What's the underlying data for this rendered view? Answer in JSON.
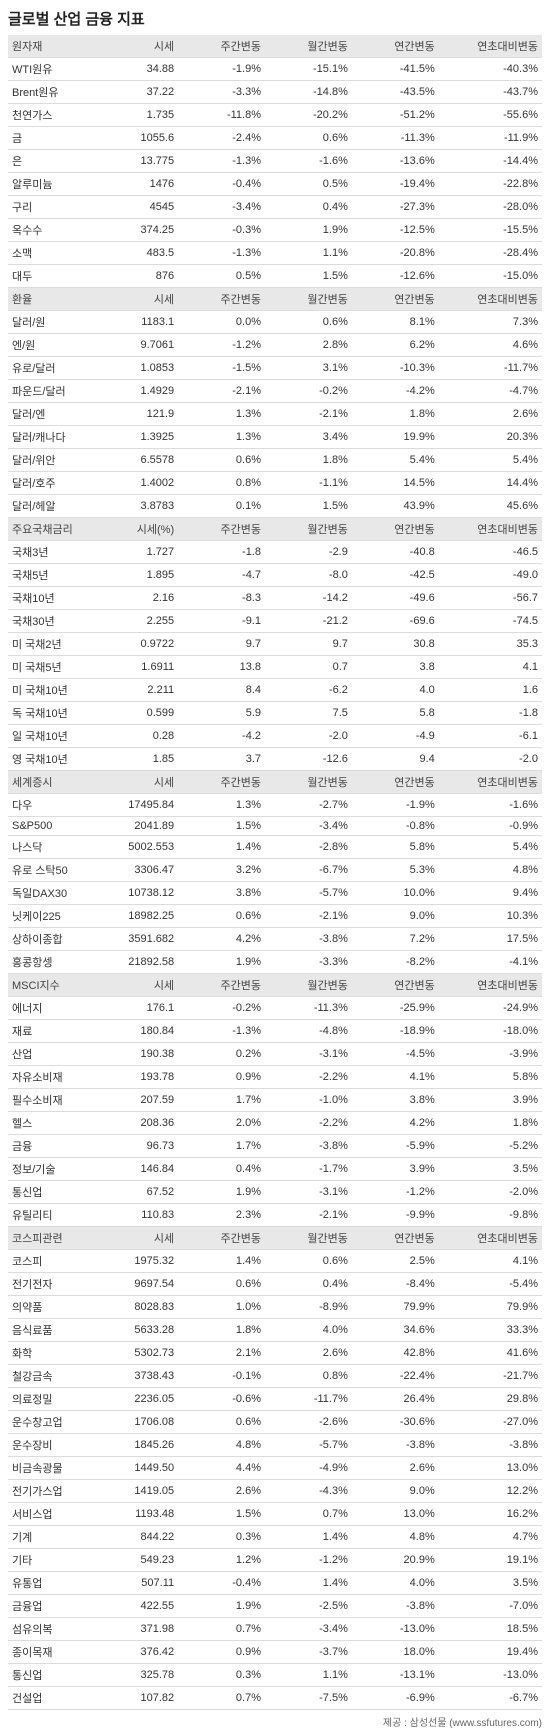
{
  "title": "글로벌 산업 금융 지표",
  "footer": "제공 : 삼성선물 (www.ssfutures.com)",
  "header_cols": [
    "주간변동",
    "월간변동",
    "연간변동",
    "연초대비변동"
  ],
  "sections": [
    {
      "name": "원자재",
      "col0": "시세",
      "rows": [
        [
          "WTI원유",
          "34.88",
          "-1.9%",
          "-15.1%",
          "-41.5%",
          "-40.3%"
        ],
        [
          "Brent원유",
          "37.22",
          "-3.3%",
          "-14.8%",
          "-43.5%",
          "-43.7%"
        ],
        [
          "천연가스",
          "1.735",
          "-11.8%",
          "-20.2%",
          "-51.2%",
          "-55.6%"
        ],
        [
          "금",
          "1055.6",
          "-2.4%",
          "0.6%",
          "-11.3%",
          "-11.9%"
        ],
        [
          "은",
          "13.775",
          "-1.3%",
          "-1.6%",
          "-13.6%",
          "-14.4%"
        ],
        [
          "알루미늄",
          "1476",
          "-0.4%",
          "0.5%",
          "-19.4%",
          "-22.8%"
        ],
        [
          "구리",
          "4545",
          "-3.4%",
          "0.4%",
          "-27.3%",
          "-28.0%"
        ],
        [
          "옥수수",
          "374.25",
          "-0.3%",
          "1.9%",
          "-12.5%",
          "-15.5%"
        ],
        [
          "소맥",
          "483.5",
          "-1.3%",
          "1.1%",
          "-20.8%",
          "-28.4%"
        ],
        [
          "대두",
          "876",
          "0.5%",
          "1.5%",
          "-12.6%",
          "-15.0%"
        ]
      ]
    },
    {
      "name": "환율",
      "col0": "시세",
      "rows": [
        [
          "달러/원",
          "1183.1",
          "0.0%",
          "0.6%",
          "8.1%",
          "7.3%"
        ],
        [
          "엔/원",
          "9.7061",
          "-1.2%",
          "2.8%",
          "6.2%",
          "4.6%"
        ],
        [
          "유로/달러",
          "1.0853",
          "-1.5%",
          "3.1%",
          "-10.3%",
          "-11.7%"
        ],
        [
          "파운드/달러",
          "1.4929",
          "-2.1%",
          "-0.2%",
          "-4.2%",
          "-4.7%"
        ],
        [
          "달러/엔",
          "121.9",
          "1.3%",
          "-2.1%",
          "1.8%",
          "2.6%"
        ],
        [
          "달러/캐나다",
          "1.3925",
          "1.3%",
          "3.4%",
          "19.9%",
          "20.3%"
        ],
        [
          "달러/위안",
          "6.5578",
          "0.6%",
          "1.8%",
          "5.4%",
          "5.4%"
        ],
        [
          "달러/호주",
          "1.4002",
          "0.8%",
          "-1.1%",
          "14.5%",
          "14.4%"
        ],
        [
          "달러/헤알",
          "3.8783",
          "0.1%",
          "1.5%",
          "43.9%",
          "45.6%"
        ]
      ]
    },
    {
      "name": "주요국채금리",
      "col0": "시세(%)",
      "rows": [
        [
          "국채3년",
          "1.727",
          "-1.8",
          "-2.9",
          "-40.8",
          "-46.5"
        ],
        [
          "국채5년",
          "1.895",
          "-4.7",
          "-8.0",
          "-42.5",
          "-49.0"
        ],
        [
          "국채10년",
          "2.16",
          "-8.3",
          "-14.2",
          "-49.6",
          "-56.7"
        ],
        [
          "국채30년",
          "2.255",
          "-9.1",
          "-21.2",
          "-69.6",
          "-74.5"
        ],
        [
          "미 국채2년",
          "0.9722",
          "9.7",
          "9.7",
          "30.8",
          "35.3"
        ],
        [
          "미 국채5년",
          "1.6911",
          "13.8",
          "0.7",
          "3.8",
          "4.1"
        ],
        [
          "미 국채10년",
          "2.211",
          "8.4",
          "-6.2",
          "4.0",
          "1.6"
        ],
        [
          "독 국채10년",
          "0.599",
          "5.9",
          "7.5",
          "5.8",
          "-1.8"
        ],
        [
          "일 국채10년",
          "0.28",
          "-4.2",
          "-2.0",
          "-4.9",
          "-6.1"
        ],
        [
          "영 국채10년",
          "1.85",
          "3.7",
          "-12.6",
          "9.4",
          "-2.0"
        ]
      ]
    },
    {
      "name": "세계증시",
      "col0": "시세",
      "rows": [
        [
          "다우",
          "17495.84",
          "1.3%",
          "-2.7%",
          "-1.9%",
          "-1.6%"
        ],
        [
          "S&P500",
          "2041.89",
          "1.5%",
          "-3.4%",
          "-0.8%",
          "-0.9%"
        ],
        [
          "나스닥",
          "5002.553",
          "1.4%",
          "-2.8%",
          "5.8%",
          "5.4%"
        ],
        [
          "유로 스탁50",
          "3306.47",
          "3.2%",
          "-6.7%",
          "5.3%",
          "4.8%"
        ],
        [
          "독일DAX30",
          "10738.12",
          "3.8%",
          "-5.7%",
          "10.0%",
          "9.4%"
        ],
        [
          "닛케이225",
          "18982.25",
          "0.6%",
          "-2.1%",
          "9.0%",
          "10.3%"
        ],
        [
          "상하이종합",
          "3591.682",
          "4.2%",
          "-3.8%",
          "7.2%",
          "17.5%"
        ],
        [
          "홍콩항셍",
          "21892.58",
          "1.9%",
          "-3.3%",
          "-8.2%",
          "-4.1%"
        ]
      ]
    },
    {
      "name": "MSCI지수",
      "col0": "시세",
      "rows": [
        [
          "에너지",
          "176.1",
          "-0.2%",
          "-11.3%",
          "-25.9%",
          "-24.9%"
        ],
        [
          "재료",
          "180.84",
          "-1.3%",
          "-4.8%",
          "-18.9%",
          "-18.0%"
        ],
        [
          "산업",
          "190.38",
          "0.2%",
          "-3.1%",
          "-4.5%",
          "-3.9%"
        ],
        [
          "자유소비재",
          "193.78",
          "0.9%",
          "-2.2%",
          "4.1%",
          "5.8%"
        ],
        [
          "필수소비재",
          "207.59",
          "1.7%",
          "-1.0%",
          "3.8%",
          "3.9%"
        ],
        [
          "헬스",
          "208.36",
          "2.0%",
          "-2.2%",
          "4.2%",
          "1.8%"
        ],
        [
          "금융",
          "96.73",
          "1.7%",
          "-3.8%",
          "-5.9%",
          "-5.2%"
        ],
        [
          "정보/기술",
          "146.84",
          "0.4%",
          "-1.7%",
          "3.9%",
          "3.5%"
        ],
        [
          "통신업",
          "67.52",
          "1.9%",
          "-3.1%",
          "-1.2%",
          "-2.0%"
        ],
        [
          "유틸리티",
          "110.83",
          "2.3%",
          "-2.1%",
          "-9.9%",
          "-9.8%"
        ]
      ]
    },
    {
      "name": "코스피관련",
      "col0": "시세",
      "rows": [
        [
          "코스피",
          "1975.32",
          "1.4%",
          "0.6%",
          "2.5%",
          "4.1%"
        ],
        [
          "전기전자",
          "9697.54",
          "0.6%",
          "0.4%",
          "-8.4%",
          "-5.4%"
        ],
        [
          "의약품",
          "8028.83",
          "1.0%",
          "-8.9%",
          "79.9%",
          "79.9%"
        ],
        [
          "음식료품",
          "5633.28",
          "1.8%",
          "4.0%",
          "34.6%",
          "33.3%"
        ],
        [
          "화학",
          "5302.73",
          "2.1%",
          "2.6%",
          "42.8%",
          "41.6%"
        ],
        [
          "철강금속",
          "3738.43",
          "-0.1%",
          "0.8%",
          "-22.4%",
          "-21.7%"
        ],
        [
          "의료정밀",
          "2236.05",
          "-0.6%",
          "-11.7%",
          "26.4%",
          "29.8%"
        ],
        [
          "운수창고업",
          "1706.08",
          "0.6%",
          "-2.6%",
          "-30.6%",
          "-27.0%"
        ],
        [
          "운수장비",
          "1845.26",
          "4.8%",
          "-5.7%",
          "-3.8%",
          "-3.8%"
        ],
        [
          "비금속광물",
          "1449.50",
          "4.4%",
          "-4.9%",
          "2.6%",
          "13.0%"
        ],
        [
          "전기가스업",
          "1419.05",
          "2.6%",
          "-4.3%",
          "9.0%",
          "12.2%"
        ],
        [
          "서비스업",
          "1193.48",
          "1.5%",
          "0.7%",
          "13.0%",
          "16.2%"
        ],
        [
          "기계",
          "844.22",
          "0.3%",
          "1.4%",
          "4.8%",
          "4.7%"
        ],
        [
          "기타",
          "549.23",
          "1.2%",
          "-1.2%",
          "20.9%",
          "19.1%"
        ],
        [
          "유통업",
          "507.11",
          "-0.4%",
          "1.4%",
          "4.0%",
          "3.5%"
        ],
        [
          "금융업",
          "422.55",
          "1.9%",
          "-2.5%",
          "-3.8%",
          "-7.0%"
        ],
        [
          "섬유의복",
          "371.98",
          "0.7%",
          "-3.4%",
          "-13.0%",
          "18.5%"
        ],
        [
          "종이목재",
          "376.42",
          "0.9%",
          "-3.7%",
          "18.0%",
          "19.4%"
        ],
        [
          "통신업",
          "325.78",
          "0.3%",
          "1.1%",
          "-13.1%",
          "-13.0%"
        ],
        [
          "건설업",
          "107.82",
          "0.7%",
          "-7.5%",
          "-6.9%",
          "-6.7%"
        ]
      ]
    }
  ]
}
